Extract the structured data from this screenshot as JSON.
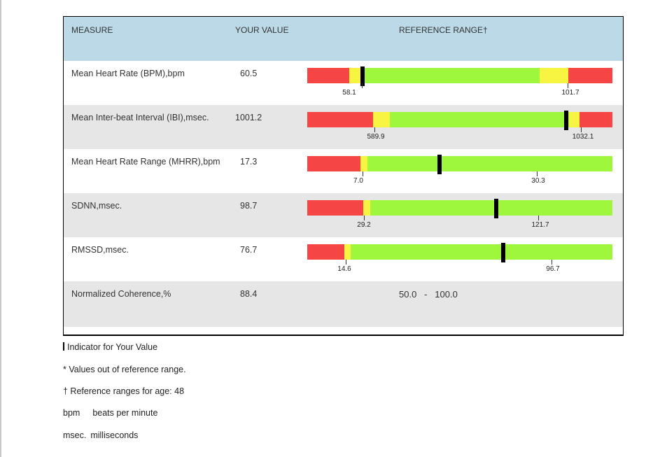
{
  "headers": {
    "measure": "MEASURE",
    "value": "YOUR VALUE",
    "range": "REFERENCE RANGE†"
  },
  "rows": [
    {
      "measure": "Mean Heart Rate (BPM),bpm",
      "value": "60.5",
      "low_label": "58.1",
      "high_label": "101.7",
      "indicator_fraction": 0.18,
      "low_fraction": 0.18,
      "high_fraction": 0.81
    },
    {
      "measure": "Mean Inter-beat Interval (IBI),msec.",
      "value": "1001.2",
      "low_label": "589.9",
      "high_label": "1032.1",
      "indicator_fraction": 0.85,
      "low_fraction": 0.22,
      "high_fraction": 0.89
    },
    {
      "measure": "Mean Heart Rate Range (MHRR),bpm",
      "value": "17.3",
      "low_label": "7.0",
      "high_label": "30.3",
      "indicator_fraction": 0.43,
      "low_fraction": 0.17,
      "high_fraction": 0.75
    },
    {
      "measure": "SDNN,msec.",
      "value": "98.7",
      "low_label": "29.2",
      "high_label": "121.7",
      "indicator_fraction": 0.62,
      "low_fraction": 0.18,
      "high_fraction": 0.76
    },
    {
      "measure": "RMSSD,msec.",
      "value": "76.7",
      "low_label": "14.6",
      "high_label": "96.7",
      "indicator_fraction": 0.64,
      "low_fraction": 0.12,
      "high_fraction": 0.8
    },
    {
      "measure": "Normalized Coherence,%",
      "value": "88.4",
      "range_text": "50.0   -   100.0"
    }
  ],
  "notes": {
    "indicator": "Indicator for Your Value",
    "out_of_range": "* Values out of reference range.",
    "age_prefix": "† Reference ranges for age: ",
    "age": "48",
    "bpm_abbr": "bpm",
    "bpm_def": "beats per minute",
    "msec_abbr": "msec.",
    "msec_def": "milliseconds"
  },
  "colors": {
    "header_bg": "#bcd9e8",
    "alt_row_bg": "#e6e6e6",
    "red": "#f54545",
    "yellow": "#f7f542",
    "green": "#9ef73c"
  }
}
